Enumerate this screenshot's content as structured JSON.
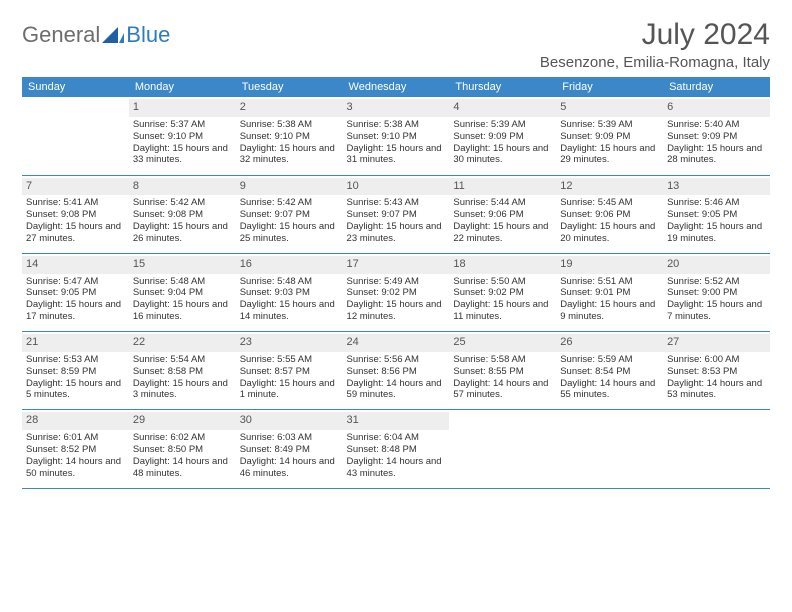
{
  "logo": {
    "text1": "General",
    "text2": "Blue"
  },
  "title": "July 2024",
  "location": "Besenzone, Emilia-Romagna, Italy",
  "colors": {
    "header_bg": "#3b87c8",
    "header_fg": "#ffffff",
    "daynum_bg": "#eeeeee",
    "rule": "#3b87c8",
    "logo_gray": "#6e6e6e",
    "logo_blue": "#2f7bbf"
  },
  "dayHeaders": [
    "Sunday",
    "Monday",
    "Tuesday",
    "Wednesday",
    "Thursday",
    "Friday",
    "Saturday"
  ],
  "weeks": [
    [
      null,
      {
        "n": "1",
        "sr": "5:37 AM",
        "ss": "9:10 PM",
        "dl": "15 hours and 33 minutes."
      },
      {
        "n": "2",
        "sr": "5:38 AM",
        "ss": "9:10 PM",
        "dl": "15 hours and 32 minutes."
      },
      {
        "n": "3",
        "sr": "5:38 AM",
        "ss": "9:10 PM",
        "dl": "15 hours and 31 minutes."
      },
      {
        "n": "4",
        "sr": "5:39 AM",
        "ss": "9:09 PM",
        "dl": "15 hours and 30 minutes."
      },
      {
        "n": "5",
        "sr": "5:39 AM",
        "ss": "9:09 PM",
        "dl": "15 hours and 29 minutes."
      },
      {
        "n": "6",
        "sr": "5:40 AM",
        "ss": "9:09 PM",
        "dl": "15 hours and 28 minutes."
      }
    ],
    [
      {
        "n": "7",
        "sr": "5:41 AM",
        "ss": "9:08 PM",
        "dl": "15 hours and 27 minutes."
      },
      {
        "n": "8",
        "sr": "5:42 AM",
        "ss": "9:08 PM",
        "dl": "15 hours and 26 minutes."
      },
      {
        "n": "9",
        "sr": "5:42 AM",
        "ss": "9:07 PM",
        "dl": "15 hours and 25 minutes."
      },
      {
        "n": "10",
        "sr": "5:43 AM",
        "ss": "9:07 PM",
        "dl": "15 hours and 23 minutes."
      },
      {
        "n": "11",
        "sr": "5:44 AM",
        "ss": "9:06 PM",
        "dl": "15 hours and 22 minutes."
      },
      {
        "n": "12",
        "sr": "5:45 AM",
        "ss": "9:06 PM",
        "dl": "15 hours and 20 minutes."
      },
      {
        "n": "13",
        "sr": "5:46 AM",
        "ss": "9:05 PM",
        "dl": "15 hours and 19 minutes."
      }
    ],
    [
      {
        "n": "14",
        "sr": "5:47 AM",
        "ss": "9:05 PM",
        "dl": "15 hours and 17 minutes."
      },
      {
        "n": "15",
        "sr": "5:48 AM",
        "ss": "9:04 PM",
        "dl": "15 hours and 16 minutes."
      },
      {
        "n": "16",
        "sr": "5:48 AM",
        "ss": "9:03 PM",
        "dl": "15 hours and 14 minutes."
      },
      {
        "n": "17",
        "sr": "5:49 AM",
        "ss": "9:02 PM",
        "dl": "15 hours and 12 minutes."
      },
      {
        "n": "18",
        "sr": "5:50 AM",
        "ss": "9:02 PM",
        "dl": "15 hours and 11 minutes."
      },
      {
        "n": "19",
        "sr": "5:51 AM",
        "ss": "9:01 PM",
        "dl": "15 hours and 9 minutes."
      },
      {
        "n": "20",
        "sr": "5:52 AM",
        "ss": "9:00 PM",
        "dl": "15 hours and 7 minutes."
      }
    ],
    [
      {
        "n": "21",
        "sr": "5:53 AM",
        "ss": "8:59 PM",
        "dl": "15 hours and 5 minutes."
      },
      {
        "n": "22",
        "sr": "5:54 AM",
        "ss": "8:58 PM",
        "dl": "15 hours and 3 minutes."
      },
      {
        "n": "23",
        "sr": "5:55 AM",
        "ss": "8:57 PM",
        "dl": "15 hours and 1 minute."
      },
      {
        "n": "24",
        "sr": "5:56 AM",
        "ss": "8:56 PM",
        "dl": "14 hours and 59 minutes."
      },
      {
        "n": "25",
        "sr": "5:58 AM",
        "ss": "8:55 PM",
        "dl": "14 hours and 57 minutes."
      },
      {
        "n": "26",
        "sr": "5:59 AM",
        "ss": "8:54 PM",
        "dl": "14 hours and 55 minutes."
      },
      {
        "n": "27",
        "sr": "6:00 AM",
        "ss": "8:53 PM",
        "dl": "14 hours and 53 minutes."
      }
    ],
    [
      {
        "n": "28",
        "sr": "6:01 AM",
        "ss": "8:52 PM",
        "dl": "14 hours and 50 minutes."
      },
      {
        "n": "29",
        "sr": "6:02 AM",
        "ss": "8:50 PM",
        "dl": "14 hours and 48 minutes."
      },
      {
        "n": "30",
        "sr": "6:03 AM",
        "ss": "8:49 PM",
        "dl": "14 hours and 46 minutes."
      },
      {
        "n": "31",
        "sr": "6:04 AM",
        "ss": "8:48 PM",
        "dl": "14 hours and 43 minutes."
      },
      null,
      null,
      null
    ]
  ],
  "labels": {
    "sunrise": "Sunrise: ",
    "sunset": "Sunset: ",
    "daylight": "Daylight: "
  }
}
